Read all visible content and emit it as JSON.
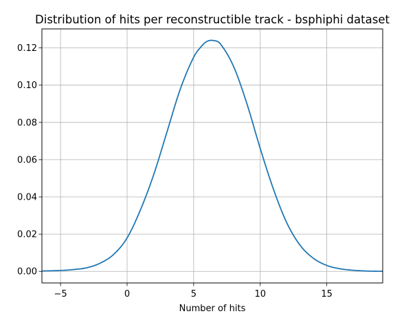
{
  "chart_data": {
    "type": "line",
    "title": "Distribution of hits per reconstructible track - bsphiphi dataset",
    "xlabel": "Number of hits",
    "ylabel": "",
    "xlim": [
      -6.4,
      19.2
    ],
    "ylim": [
      -0.0062,
      0.1302
    ],
    "xticks": [
      -5,
      0,
      5,
      10,
      15
    ],
    "xtick_labels": [
      "−5",
      "0",
      "5",
      "10",
      "15"
    ],
    "yticks": [
      0.0,
      0.02,
      0.04,
      0.06,
      0.08,
      0.1,
      0.12
    ],
    "ytick_labels": [
      "0.00",
      "0.02",
      "0.04",
      "0.06",
      "0.08",
      "0.10",
      "0.12"
    ],
    "grid": true,
    "legend": "none",
    "series": [
      {
        "color": "#1f77b4",
        "x": [
          -6.4,
          -5,
          -4,
          -3,
          -2,
          -1,
          0,
          1,
          2,
          3,
          4,
          5,
          5.6,
          6,
          6.45,
          7,
          8,
          9,
          10,
          11,
          12,
          13,
          14,
          15,
          16,
          17,
          18,
          19.2
        ],
        "y": [
          0.0002,
          0.0005,
          0.001,
          0.002,
          0.0045,
          0.0092,
          0.018,
          0.033,
          0.052,
          0.075,
          0.098,
          0.115,
          0.121,
          0.1235,
          0.124,
          0.1222,
          0.11,
          0.09,
          0.066,
          0.044,
          0.026,
          0.014,
          0.007,
          0.0032,
          0.0014,
          0.0006,
          0.0002,
          5e-05
        ]
      }
    ]
  }
}
